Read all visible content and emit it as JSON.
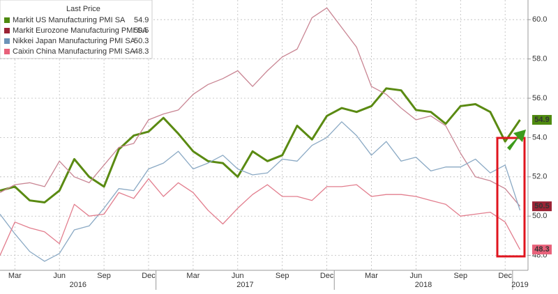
{
  "chart_data": {
    "type": "line",
    "legend_title": "Last Price",
    "categories": [
      null,
      "Mar",
      null,
      null,
      "Jun",
      null,
      null,
      "Sep",
      null,
      null,
      "Dec",
      null,
      null,
      "Mar",
      null,
      null,
      "Jun",
      null,
      null,
      "Sep",
      null,
      null,
      "Dec",
      null,
      null,
      "Mar",
      null,
      null,
      "Jun",
      null,
      null,
      "Sep",
      null,
      null,
      "Dec",
      null
    ],
    "x_groups": [
      {
        "label": "2016",
        "count": 11
      },
      {
        "label": "2017",
        "count": 12
      },
      {
        "label": "2018",
        "count": 12
      },
      {
        "label": "2019",
        "count": 1
      }
    ],
    "ylim": [
      47.1,
      61
    ],
    "yticks": [
      {
        "value": 48,
        "label": "48.0"
      },
      {
        "value": 50,
        "label": "50.0"
      },
      {
        "value": 52,
        "label": "52.0"
      },
      {
        "value": 54,
        "label": "54.0"
      },
      {
        "value": 56,
        "label": "56.0"
      },
      {
        "value": 58,
        "label": "58.0"
      },
      {
        "value": 60,
        "label": "60.0"
      }
    ],
    "grid": true,
    "series": [
      {
        "name": "Markit US Manufacturing PMI SA",
        "color": "#5a8a12",
        "legend_color": "#4f8a10",
        "width": 3,
        "tag": true,
        "values": [
          51.3,
          51.5,
          50.8,
          50.7,
          51.3,
          52.9,
          52.0,
          51.5,
          53.4,
          54.1,
          54.3,
          55.0,
          54.2,
          53.3,
          52.8,
          52.7,
          52.0,
          53.3,
          52.8,
          53.1,
          54.6,
          53.9,
          55.1,
          55.5,
          55.3,
          55.6,
          56.5,
          56.4,
          55.4,
          55.3,
          54.7,
          55.6,
          55.7,
          55.3,
          53.8,
          54.9
        ]
      },
      {
        "name": "Markit Eurozone Manufacturing PMI SA",
        "color": "#c98593",
        "legend_color": "#9b2335",
        "width": 1.3,
        "tag": true,
        "values": [
          51.2,
          51.6,
          51.7,
          51.5,
          52.8,
          52.0,
          51.7,
          52.6,
          53.5,
          53.7,
          54.9,
          55.2,
          55.4,
          56.2,
          56.7,
          57.0,
          57.4,
          56.6,
          57.4,
          58.1,
          58.5,
          60.1,
          60.6,
          59.6,
          58.6,
          56.6,
          56.2,
          55.5,
          54.9,
          55.1,
          54.6,
          53.2,
          52.0,
          51.8,
          51.4,
          50.5
        ]
      },
      {
        "name": "Nikkei Japan Manufacturing PMI SA",
        "color": "#8aa9c4",
        "legend_color": "#6c93b8",
        "width": 1.3,
        "tag": false,
        "values": [
          50.1,
          49.1,
          48.2,
          47.7,
          48.1,
          49.3,
          49.5,
          50.4,
          51.4,
          51.3,
          52.4,
          52.7,
          53.3,
          52.4,
          52.7,
          53.1,
          52.4,
          52.1,
          52.2,
          52.9,
          52.8,
          53.6,
          54.0,
          54.8,
          54.1,
          53.1,
          53.8,
          52.8,
          53.0,
          52.3,
          52.5,
          52.5,
          52.9,
          52.2,
          52.6,
          50.3
        ]
      },
      {
        "name": "Caixin China Manufacturing PMI SA",
        "color": "#e27d8d",
        "legend_color": "#e8617a",
        "width": 1.3,
        "tag": true,
        "values": [
          48.0,
          49.7,
          49.4,
          49.2,
          48.6,
          50.6,
          50.0,
          50.1,
          51.2,
          50.9,
          51.9,
          51.0,
          51.7,
          51.2,
          50.3,
          49.6,
          50.4,
          51.1,
          51.6,
          51.0,
          51.0,
          50.8,
          51.5,
          51.5,
          51.6,
          51.0,
          51.1,
          51.1,
          51.0,
          50.8,
          50.6,
          50.0,
          50.1,
          50.2,
          49.7,
          48.3
        ]
      }
    ]
  }
}
